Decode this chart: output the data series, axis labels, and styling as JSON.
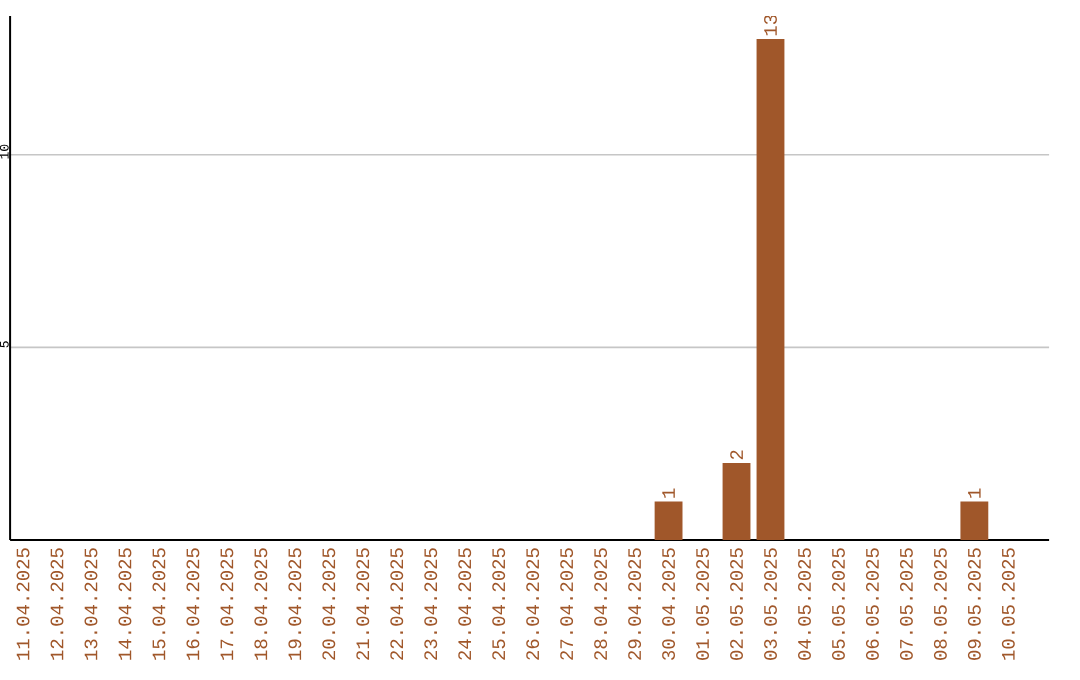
{
  "chart_data": {
    "type": "bar",
    "categories": [
      "11.04.2025",
      "12.04.2025",
      "13.04.2025",
      "14.04.2025",
      "15.04.2025",
      "16.04.2025",
      "17.04.2025",
      "18.04.2025",
      "19.04.2025",
      "20.04.2025",
      "21.04.2025",
      "22.04.2025",
      "23.04.2025",
      "24.04.2025",
      "25.04.2025",
      "26.04.2025",
      "27.04.2025",
      "28.04.2025",
      "29.04.2025",
      "30.04.2025",
      "01.05.2025",
      "02.05.2025",
      "03.05.2025",
      "04.05.2025",
      "05.05.2025",
      "06.05.2025",
      "07.05.2025",
      "08.05.2025",
      "09.05.2025",
      "10.05.2025"
    ],
    "values": [
      0,
      0,
      0,
      0,
      0,
      0,
      0,
      0,
      0,
      0,
      0,
      0,
      0,
      0,
      0,
      0,
      0,
      0,
      0,
      1,
      0,
      2,
      13,
      0,
      0,
      0,
      0,
      0,
      1,
      0
    ],
    "value_labels": [
      null,
      null,
      null,
      null,
      null,
      null,
      null,
      null,
      null,
      null,
      null,
      null,
      null,
      null,
      null,
      null,
      null,
      null,
      null,
      "1",
      null,
      "2",
      "13",
      null,
      null,
      null,
      null,
      null,
      "1",
      null
    ],
    "color": "#a0572a",
    "ylim": [
      0,
      13.6
    ],
    "yticks": [
      5,
      10
    ],
    "grid": "y"
  }
}
